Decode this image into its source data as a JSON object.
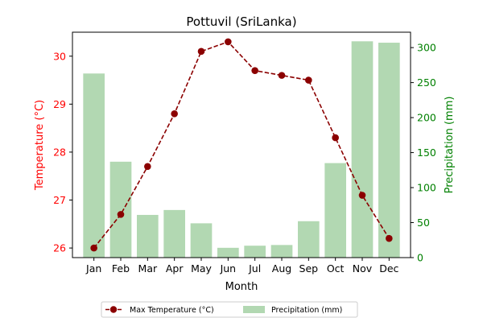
{
  "chart_data": {
    "type": "bar+line",
    "title": "Pottuvil (SriLanka)",
    "xlabel": "Month",
    "categories": [
      "Jan",
      "Feb",
      "Mar",
      "Apr",
      "May",
      "Jun",
      "Jul",
      "Aug",
      "Sep",
      "Oct",
      "Nov",
      "Dec"
    ],
    "left_axis": {
      "label": "Temperature (°C)",
      "color": "#ff0000",
      "ylim": [
        25.8,
        30.5
      ],
      "ticks": [
        "26",
        "27",
        "28",
        "29",
        "30"
      ]
    },
    "right_axis": {
      "label": "Precipitation (mm)",
      "color": "#008000",
      "ylim": [
        0,
        322
      ],
      "ticks": [
        "0",
        "50",
        "100",
        "150",
        "200",
        "250",
        "300"
      ]
    },
    "series": [
      {
        "name": "Max Temperature (°C)",
        "kind": "line",
        "axis": "left",
        "color": "#8b0000",
        "style": "dashed",
        "marker": "circle",
        "values": [
          26.0,
          26.7,
          27.7,
          28.8,
          30.1,
          30.3,
          29.7,
          29.6,
          29.5,
          28.3,
          27.1,
          26.2
        ]
      },
      {
        "name": "Precipitation (mm)",
        "kind": "bar",
        "axis": "right",
        "color": "#b2d8b2",
        "values": [
          263,
          137,
          61,
          68,
          49,
          14,
          17,
          18,
          52,
          135,
          309,
          307
        ]
      }
    ],
    "legend_position": "bottom-center"
  }
}
